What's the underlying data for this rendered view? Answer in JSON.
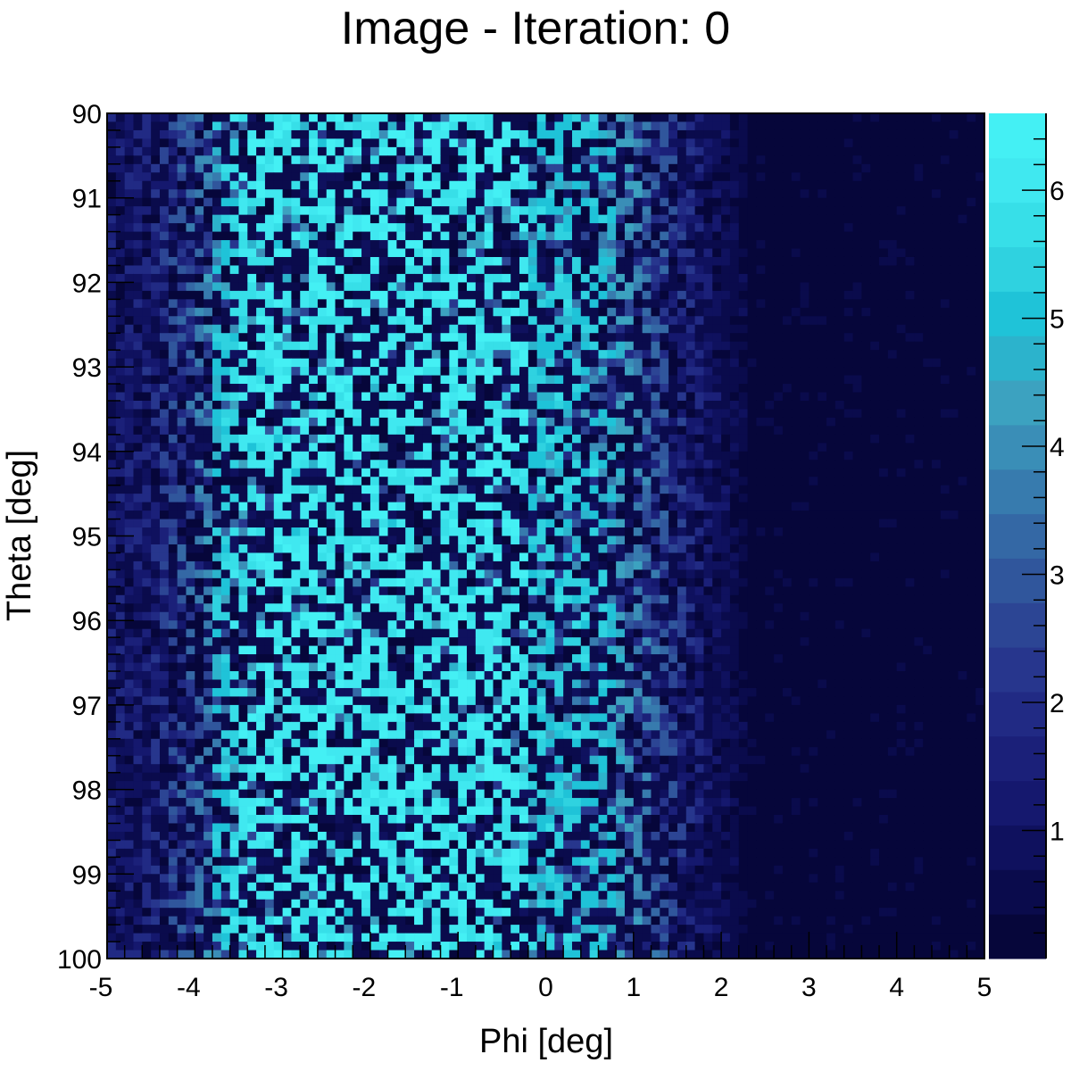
{
  "chart_data": {
    "type": "heatmap",
    "title": "Image - Iteration: 0",
    "xlabel": "Phi [deg]",
    "ylabel": "Theta [deg]",
    "xlim": [
      -5,
      5
    ],
    "ylim": [
      90,
      100
    ],
    "y_inverted": true,
    "x_ticks": [
      "-5",
      "-4",
      "-3",
      "-2",
      "-1",
      "0",
      "1",
      "2",
      "3",
      "4",
      "5"
    ],
    "y_ticks": [
      "90",
      "91",
      "92",
      "93",
      "94",
      "95",
      "96",
      "97",
      "98",
      "99",
      "100"
    ],
    "bins": {
      "nx": 100,
      "ny": 100
    },
    "colorbar": {
      "range": [
        0,
        6.6
      ],
      "ticks": [
        "1",
        "2",
        "3",
        "4",
        "5",
        "6"
      ],
      "palette": [
        "#06063a",
        "#0a0b4c",
        "#0f115e",
        "#15186e",
        "#1b2079",
        "#212a84",
        "#27368d",
        "#2c4594",
        "#30569c",
        "#3468a5",
        "#377bae",
        "#3a8eb7",
        "#3ca2c0",
        "#2cb3cc",
        "#1fc3d8",
        "#2fd2e0",
        "#37dfe8",
        "#40e8f0",
        "#44f0f4"
      ]
    },
    "grid": false,
    "distribution": {
      "description": "counts concentrated in -4.5 < Phi < 0.5, falling to near zero for Phi > 2",
      "peak_value": 6.6,
      "background_value": 0.3
    }
  }
}
